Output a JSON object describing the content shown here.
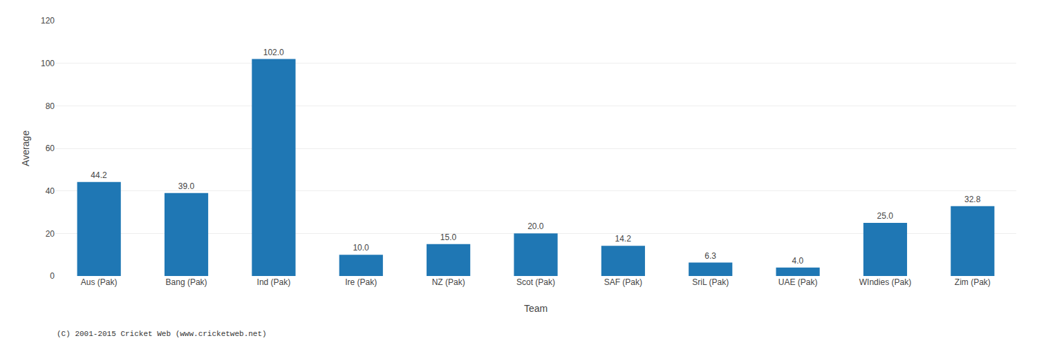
{
  "chart_data": {
    "type": "bar",
    "xlabel": "Team",
    "ylabel": "Average",
    "categories": [
      "Aus (Pak)",
      "Bang (Pak)",
      "Ind (Pak)",
      "Ire (Pak)",
      "NZ (Pak)",
      "Scot (Pak)",
      "SAF (Pak)",
      "SriL (Pak)",
      "UAE (Pak)",
      "WIndies (Pak)",
      "Zim (Pak)"
    ],
    "values": [
      44.2,
      39.0,
      102.0,
      10.0,
      15.0,
      20.0,
      14.2,
      6.3,
      4.0,
      25.0,
      32.8
    ],
    "value_labels": [
      "44.2",
      "39.0",
      "102.0",
      "10.0",
      "15.0",
      "20.0",
      "14.2",
      "6.3",
      "4.0",
      "25.0",
      "32.8"
    ],
    "data_labels": true,
    "ylim": [
      0,
      120
    ],
    "yticks": [
      0,
      20,
      40,
      60,
      80,
      100,
      120
    ],
    "grid": true,
    "annotations": [
      "(C) 2001-2015 Cricket Web (www.cricketweb.net)"
    ]
  }
}
